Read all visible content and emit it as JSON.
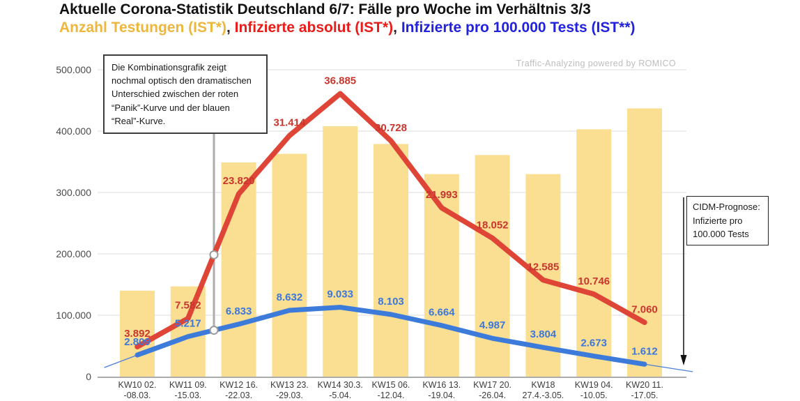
{
  "title": "Aktuelle Corona-Statistik Deutschland 6/7: Fälle pro Woche im Verhältnis 3/3",
  "subtitle": {
    "separator": ", ",
    "items": [
      {
        "label": "Anzahl Testungen (IST*)",
        "color": "#EDB73D"
      },
      {
        "label": "Infizierte absolut (IST*)",
        "color": "#E81C18"
      },
      {
        "label": "Infizierte pro 100.000 Tests (IST**)",
        "color": "#2222DE"
      }
    ]
  },
  "watermark": "Traffic-Analyzing powered by ROMICO",
  "annotation_box": {
    "text": "Die Kombinationsgrafik zeigt\nnochmal optisch den dramatischen\nUnterschied zwischen der roten\n“Panik”-Kurve und der blauen\n“Real”-Kurve."
  },
  "prognose_box": {
    "text": "CIDM-Prognose:\nInfizierte pro\n100.000 Tests"
  },
  "chart_data": {
    "type": "combo",
    "title": "Aktuelle Corona-Statistik Deutschland 6/7: Fälle pro Woche im Verhältnis 3/3",
    "categories": [
      [
        "KW10 02.",
        "-08.03."
      ],
      [
        "KW11 09.",
        "-15.03."
      ],
      [
        "KW12 16.",
        "-22.03."
      ],
      [
        "KW13 23.",
        "-29.03."
      ],
      [
        "KW14 30.3.",
        "-5.04."
      ],
      [
        "KW15 06.",
        "-12.04."
      ],
      [
        "KW16 13.",
        "-19.04."
      ],
      [
        "KW17 20.",
        "-26.04."
      ],
      [
        "KW18",
        "27.4.-3.05."
      ],
      [
        "KW19 04.",
        "-10.05."
      ],
      [
        "KW20 11.",
        "-17.05."
      ]
    ],
    "grid": true,
    "y_axis": {
      "side": "left",
      "range": [
        0,
        500000
      ],
      "ticks": [
        0,
        100000,
        200000,
        300000,
        400000,
        500000
      ],
      "tick_format": "de-thousands"
    },
    "y2_axis": {
      "side": "right",
      "visible": false,
      "range": [
        0,
        40000
      ]
    },
    "series": [
      {
        "name": "Anzahl Testungen (IST*)",
        "type": "bar",
        "axis": "y",
        "color": "#FADE92",
        "values_estimated": true,
        "values": [
          140000,
          147000,
          349000,
          363000,
          408000,
          379000,
          330000,
          361000,
          330000,
          403000,
          437000
        ]
      },
      {
        "name": "Infizierte absolut (IST*)",
        "type": "line",
        "axis": "y2",
        "color": "#DF4537",
        "label_color": "#C8362D",
        "data_labels": true,
        "values": [
          3892,
          7582,
          23820,
          31414,
          36885,
          30728,
          21993,
          18052,
          12585,
          10746,
          7060
        ]
      },
      {
        "name": "Infizierte pro 100.000 Tests (IST**)",
        "type": "line",
        "axis": "y2",
        "color": "#3D7BDB",
        "label_color": "#3C77DC",
        "data_labels": true,
        "values": [
          2809,
          5217,
          6833,
          8632,
          9033,
          8103,
          6664,
          4987,
          3804,
          2673,
          1612
        ]
      }
    ],
    "prognose_extension": {
      "name": "CIDM-Prognose: Infizierte pro 100.000 Tests",
      "color": "#4C80D8",
      "left": {
        "x_offset": -0.65,
        "value": 1180
      },
      "right": {
        "x_offset": 0.95,
        "value": 640
      }
    }
  }
}
